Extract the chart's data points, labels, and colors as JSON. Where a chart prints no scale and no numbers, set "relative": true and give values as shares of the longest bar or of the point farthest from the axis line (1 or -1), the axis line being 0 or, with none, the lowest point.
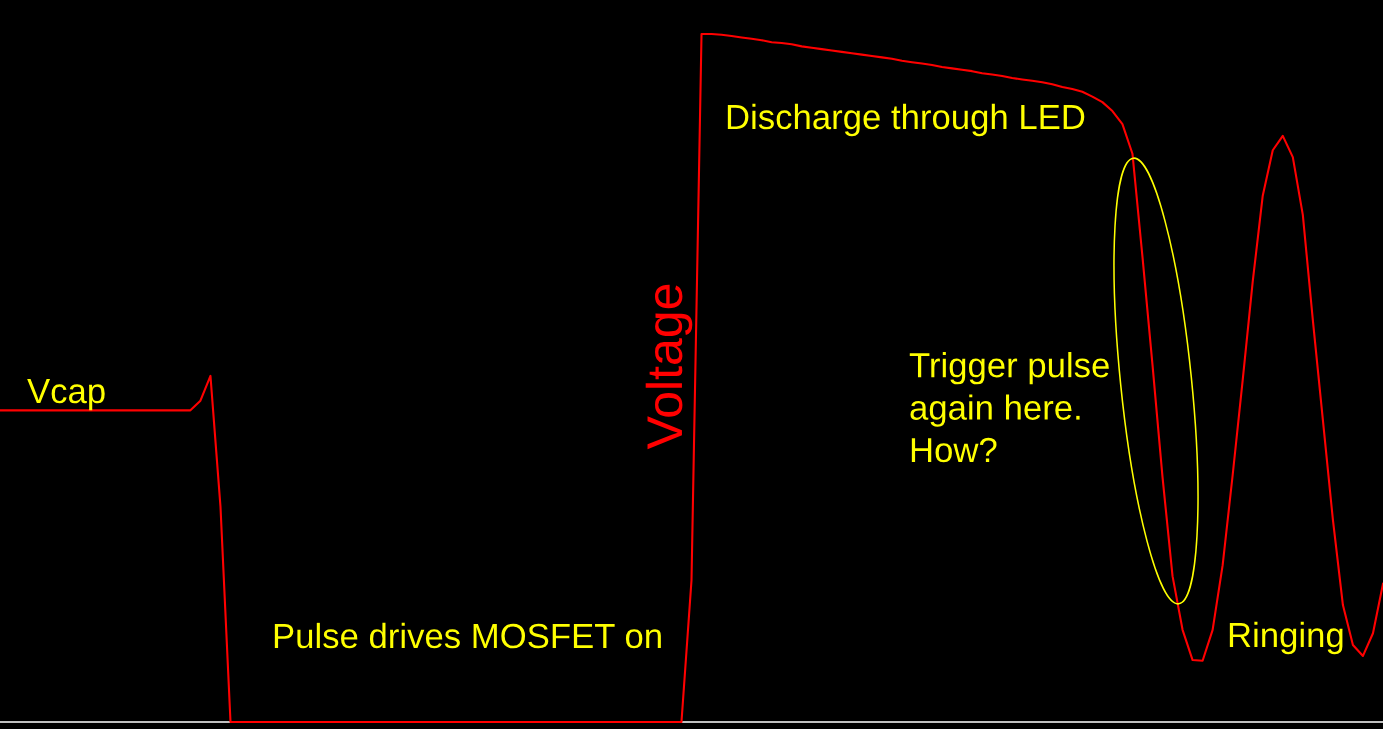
{
  "chart_data": {
    "type": "line",
    "relative": true,
    "line_style": "solid",
    "categories": [
      null,
      null,
      null,
      null,
      null,
      null,
      null,
      null,
      null,
      null,
      null,
      null,
      null,
      null,
      null,
      null,
      null,
      null,
      null,
      null,
      null,
      null,
      null,
      null,
      null,
      null,
      null,
      null,
      null,
      null,
      null,
      null,
      null,
      null,
      null,
      null,
      null,
      null,
      null,
      null,
      null,
      null,
      null,
      null,
      null,
      null,
      null,
      null,
      null,
      null,
      null,
      null,
      null,
      null,
      null,
      null,
      null,
      null,
      null,
      null,
      null,
      null,
      null,
      null,
      null,
      null,
      null,
      null,
      null,
      null,
      null,
      null,
      null,
      null,
      null,
      null,
      null,
      null,
      null,
      null,
      null,
      null,
      null,
      null,
      null,
      null,
      null,
      null,
      null,
      null,
      null,
      null,
      null,
      null,
      null,
      null,
      null,
      null,
      null,
      null,
      null,
      null,
      null,
      null,
      null,
      null,
      null,
      null,
      null,
      null,
      null,
      null,
      null,
      null,
      null,
      null,
      null,
      null,
      null,
      null,
      null,
      null,
      null,
      null,
      null,
      null,
      null,
      null,
      null,
      null,
      null,
      null,
      null,
      null,
      null,
      null,
      null,
      null,
      null
    ],
    "series": [
      {
        "name": "Voltage",
        "color": "#ff0000",
        "values": [
          0.453,
          0.453,
          0.453,
          0.453,
          0.453,
          0.453,
          0.453,
          0.453,
          0.453,
          0.453,
          0.453,
          0.453,
          0.453,
          0.453,
          0.453,
          0.453,
          0.453,
          0.453,
          0.453,
          0.453,
          0.467,
          0.503,
          0.313,
          0,
          0,
          0,
          0,
          0,
          0,
          0,
          0,
          0,
          0,
          0,
          0,
          0,
          0,
          0,
          0,
          0,
          0,
          0,
          0,
          0,
          0,
          0,
          0,
          0,
          0,
          0,
          0,
          0,
          0,
          0,
          0,
          0,
          0,
          0,
          0,
          0,
          0,
          0,
          0,
          0,
          0,
          0,
          0,
          0,
          0,
          0.206,
          1.0,
          1.0,
          0.999,
          0.997,
          0.995,
          0.993,
          0.991,
          0.988,
          0.987,
          0.985,
          0.982,
          0.98,
          0.978,
          0.976,
          0.974,
          0.972,
          0.97,
          0.968,
          0.966,
          0.964,
          0.961,
          0.959,
          0.957,
          0.955,
          0.952,
          0.95,
          0.948,
          0.946,
          0.943,
          0.941,
          0.939,
          0.936,
          0.934,
          0.932,
          0.93,
          0.927,
          0.923,
          0.92,
          0.916,
          0.909,
          0.901,
          0.888,
          0.869,
          0.826,
          0.676,
          0.519,
          0.356,
          0.212,
          0.134,
          0.09,
          0.089,
          0.134,
          0.228,
          0.359,
          0.497,
          0.64,
          0.765,
          0.831,
          0.852,
          0.821,
          0.737,
          0.584,
          0.439,
          0.294,
          0.17,
          0.112,
          0.096,
          0.129,
          0.201
        ]
      }
    ],
    "annotations": [
      "Vcap",
      "Pulse drives MOSFET on",
      "Discharge through LED",
      "Trigger pulse\nagain here.\nHow?",
      "Ringing"
    ]
  }
}
